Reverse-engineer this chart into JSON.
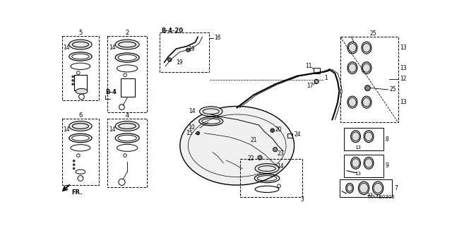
{
  "bg_color": "#ffffff",
  "diagram_code": "TYA4B0305",
  "b4_20_label": "B-4-20",
  "b4_label": "B-4",
  "fr_label": "FR."
}
